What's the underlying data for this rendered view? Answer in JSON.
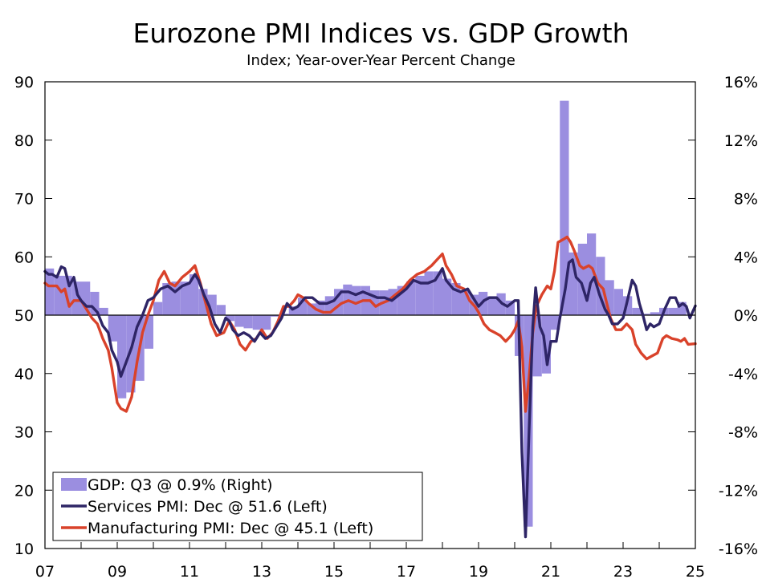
{
  "title": "Eurozone PMI Indices vs. GDP Growth",
  "subtitle": "Index; Year-over-Year Percent Change",
  "colors": {
    "gdp": "#9b8ee0",
    "services": "#2e2566",
    "manufacturing": "#d9422a"
  },
  "chart_data": {
    "type": "bar+line",
    "x_tick_labels": [
      "07",
      "09",
      "11",
      "13",
      "15",
      "17",
      "19",
      "21",
      "23",
      "25"
    ],
    "x_range": [
      2007,
      2025
    ],
    "left_axis": {
      "range": [
        10,
        90
      ],
      "ticks": [
        "10",
        "20",
        "30",
        "40",
        "50",
        "60",
        "70",
        "80",
        "90"
      ]
    },
    "right_axis": {
      "range": [
        -16,
        16
      ],
      "ticks": [
        "-16%",
        "-12%",
        "-8%",
        "-4%",
        "0%",
        "4%",
        "8%",
        "12%",
        "16%"
      ]
    },
    "legend": [
      {
        "label": "GDP: Q3 @ 0.9% (Right)",
        "kind": "bar"
      },
      {
        "label": "Services PMI: Dec @ 51.6 (Left)",
        "kind": "line"
      },
      {
        "label": "Manufacturing PMI: Dec @ 45.1 (Left)",
        "kind": "line"
      }
    ],
    "legend_position": "bottom-left",
    "gdp": [
      [
        2007.0,
        3.2
      ],
      [
        2007.25,
        2.7
      ],
      [
        2007.5,
        2.7
      ],
      [
        2007.75,
        2.3
      ],
      [
        2008.0,
        2.3
      ],
      [
        2008.25,
        1.6
      ],
      [
        2008.5,
        0.5
      ],
      [
        2008.75,
        -1.8
      ],
      [
        2009.0,
        -5.7
      ],
      [
        2009.25,
        -5.3
      ],
      [
        2009.5,
        -4.5
      ],
      [
        2009.75,
        -2.3
      ],
      [
        2010.0,
        0.9
      ],
      [
        2010.25,
        2.2
      ],
      [
        2010.5,
        2.3
      ],
      [
        2010.75,
        2.3
      ],
      [
        2011.0,
        2.8
      ],
      [
        2011.25,
        1.8
      ],
      [
        2011.5,
        1.4
      ],
      [
        2011.75,
        0.7
      ],
      [
        2012.0,
        -0.4
      ],
      [
        2012.25,
        -0.8
      ],
      [
        2012.5,
        -0.9
      ],
      [
        2012.75,
        -1.0
      ],
      [
        2013.0,
        -1.0
      ],
      [
        2013.25,
        -0.1
      ],
      [
        2013.5,
        0.1
      ],
      [
        2013.75,
        0.6
      ],
      [
        2014.0,
        1.2
      ],
      [
        2014.25,
        0.8
      ],
      [
        2014.5,
        1.0
      ],
      [
        2014.75,
        1.3
      ],
      [
        2015.0,
        1.8
      ],
      [
        2015.25,
        2.1
      ],
      [
        2015.5,
        2.0
      ],
      [
        2015.75,
        2.0
      ],
      [
        2016.0,
        1.7
      ],
      [
        2016.25,
        1.7
      ],
      [
        2016.5,
        1.8
      ],
      [
        2016.75,
        2.0
      ],
      [
        2017.0,
        2.3
      ],
      [
        2017.25,
        2.7
      ],
      [
        2017.5,
        3.0
      ],
      [
        2017.75,
        3.0
      ],
      [
        2018.0,
        2.5
      ],
      [
        2018.25,
        2.2
      ],
      [
        2018.5,
        1.7
      ],
      [
        2018.75,
        1.4
      ],
      [
        2019.0,
        1.6
      ],
      [
        2019.25,
        1.3
      ],
      [
        2019.5,
        1.5
      ],
      [
        2019.75,
        1.0
      ],
      [
        2020.0,
        -2.8
      ],
      [
        2020.25,
        -14.5
      ],
      [
        2020.5,
        -4.2
      ],
      [
        2020.75,
        -4.0
      ],
      [
        2021.0,
        -1.0
      ],
      [
        2021.25,
        14.7
      ],
      [
        2021.5,
        4.3
      ],
      [
        2021.75,
        4.9
      ],
      [
        2022.0,
        5.6
      ],
      [
        2022.25,
        4.0
      ],
      [
        2022.5,
        2.4
      ],
      [
        2022.75,
        1.8
      ],
      [
        2023.0,
        1.3
      ],
      [
        2023.25,
        0.5
      ],
      [
        2023.5,
        0.1
      ],
      [
        2023.75,
        0.2
      ],
      [
        2024.0,
        0.5
      ],
      [
        2024.25,
        0.5
      ],
      [
        2024.5,
        0.9
      ]
    ],
    "services_pmi": [
      [
        2007.0,
        57.5
      ],
      [
        2007.1,
        57.0
      ],
      [
        2007.2,
        57.0
      ],
      [
        2007.33,
        56.5
      ],
      [
        2007.45,
        58.3
      ],
      [
        2007.55,
        58.0
      ],
      [
        2007.67,
        55.0
      ],
      [
        2007.8,
        56.5
      ],
      [
        2007.9,
        53.5
      ],
      [
        2008.0,
        52.5
      ],
      [
        2008.15,
        51.5
      ],
      [
        2008.3,
        51.5
      ],
      [
        2008.45,
        50.5
      ],
      [
        2008.6,
        48.2
      ],
      [
        2008.75,
        47.0
      ],
      [
        2008.85,
        44.0
      ],
      [
        2009.0,
        42.0
      ],
      [
        2009.1,
        39.5
      ],
      [
        2009.25,
        42.0
      ],
      [
        2009.4,
        44.5
      ],
      [
        2009.55,
        48.0
      ],
      [
        2009.7,
        50.0
      ],
      [
        2009.85,
        52.5
      ],
      [
        2010.0,
        53.0
      ],
      [
        2010.2,
        54.5
      ],
      [
        2010.4,
        55.0
      ],
      [
        2010.6,
        54.0
      ],
      [
        2010.8,
        55.0
      ],
      [
        2011.0,
        55.5
      ],
      [
        2011.15,
        57.0
      ],
      [
        2011.25,
        56.0
      ],
      [
        2011.4,
        53.5
      ],
      [
        2011.55,
        51.5
      ],
      [
        2011.7,
        48.5
      ],
      [
        2011.85,
        47.0
      ],
      [
        2012.0,
        49.5
      ],
      [
        2012.1,
        49.0
      ],
      [
        2012.2,
        47.5
      ],
      [
        2012.35,
        46.5
      ],
      [
        2012.5,
        47.0
      ],
      [
        2012.65,
        46.5
      ],
      [
        2012.8,
        45.5
      ],
      [
        2012.95,
        47.0
      ],
      [
        2013.1,
        46.0
      ],
      [
        2013.25,
        46.5
      ],
      [
        2013.4,
        48.0
      ],
      [
        2013.55,
        49.5
      ],
      [
        2013.7,
        52.0
      ],
      [
        2013.85,
        51.0
      ],
      [
        2014.0,
        51.5
      ],
      [
        2014.2,
        53.0
      ],
      [
        2014.4,
        53.0
      ],
      [
        2014.6,
        52.0
      ],
      [
        2014.8,
        52.0
      ],
      [
        2015.0,
        52.5
      ],
      [
        2015.2,
        54.0
      ],
      [
        2015.4,
        54.0
      ],
      [
        2015.6,
        53.5
      ],
      [
        2015.8,
        54.0
      ],
      [
        2016.0,
        53.5
      ],
      [
        2016.2,
        53.0
      ],
      [
        2016.4,
        53.0
      ],
      [
        2016.6,
        52.5
      ],
      [
        2016.8,
        53.5
      ],
      [
        2017.0,
        54.5
      ],
      [
        2017.2,
        56.0
      ],
      [
        2017.4,
        55.5
      ],
      [
        2017.6,
        55.5
      ],
      [
        2017.8,
        56.0
      ],
      [
        2018.0,
        58.0
      ],
      [
        2018.1,
        56.0
      ],
      [
        2018.3,
        54.5
      ],
      [
        2018.5,
        54.0
      ],
      [
        2018.7,
        54.5
      ],
      [
        2018.85,
        53.0
      ],
      [
        2019.0,
        51.5
      ],
      [
        2019.15,
        52.5
      ],
      [
        2019.3,
        53.0
      ],
      [
        2019.5,
        53.0
      ],
      [
        2019.65,
        52.0
      ],
      [
        2019.8,
        51.5
      ],
      [
        2020.0,
        52.5
      ],
      [
        2020.1,
        52.5
      ],
      [
        2020.2,
        26.5
      ],
      [
        2020.3,
        12.0
      ],
      [
        2020.4,
        30.5
      ],
      [
        2020.5,
        48.0
      ],
      [
        2020.58,
        54.7
      ],
      [
        2020.7,
        48.0
      ],
      [
        2020.8,
        46.5
      ],
      [
        2020.9,
        41.5
      ],
      [
        2021.0,
        45.5
      ],
      [
        2021.15,
        45.5
      ],
      [
        2021.25,
        49.5
      ],
      [
        2021.4,
        54.5
      ],
      [
        2021.5,
        59.0
      ],
      [
        2021.6,
        59.5
      ],
      [
        2021.7,
        56.5
      ],
      [
        2021.85,
        55.5
      ],
      [
        2022.0,
        52.5
      ],
      [
        2022.1,
        55.5
      ],
      [
        2022.2,
        56.5
      ],
      [
        2022.35,
        53.5
      ],
      [
        2022.5,
        51.0
      ],
      [
        2022.6,
        50.0
      ],
      [
        2022.7,
        48.5
      ],
      [
        2022.85,
        48.5
      ],
      [
        2023.0,
        49.5
      ],
      [
        2023.1,
        52.0
      ],
      [
        2023.25,
        56.0
      ],
      [
        2023.35,
        55.0
      ],
      [
        2023.45,
        52.0
      ],
      [
        2023.55,
        50.0
      ],
      [
        2023.65,
        47.5
      ],
      [
        2023.75,
        48.5
      ],
      [
        2023.85,
        48.0
      ],
      [
        2024.0,
        48.5
      ],
      [
        2024.15,
        51.0
      ],
      [
        2024.3,
        53.0
      ],
      [
        2024.45,
        53.0
      ],
      [
        2024.55,
        51.5
      ],
      [
        2024.65,
        52.0
      ],
      [
        2024.75,
        51.5
      ],
      [
        2024.85,
        49.5
      ],
      [
        2025.0,
        51.6
      ]
    ],
    "manufacturing_pmi": [
      [
        2007.0,
        55.5
      ],
      [
        2007.1,
        55.0
      ],
      [
        2007.2,
        55.0
      ],
      [
        2007.33,
        55.0
      ],
      [
        2007.45,
        54.0
      ],
      [
        2007.55,
        54.5
      ],
      [
        2007.67,
        51.5
      ],
      [
        2007.8,
        52.5
      ],
      [
        2007.9,
        52.5
      ],
      [
        2008.0,
        52.5
      ],
      [
        2008.15,
        51.0
      ],
      [
        2008.3,
        49.5
      ],
      [
        2008.45,
        48.5
      ],
      [
        2008.6,
        46.0
      ],
      [
        2008.75,
        44.0
      ],
      [
        2008.85,
        41.0
      ],
      [
        2009.0,
        35.0
      ],
      [
        2009.1,
        34.0
      ],
      [
        2009.25,
        33.5
      ],
      [
        2009.4,
        36.0
      ],
      [
        2009.55,
        42.0
      ],
      [
        2009.7,
        47.0
      ],
      [
        2009.85,
        50.0
      ],
      [
        2010.0,
        52.5
      ],
      [
        2010.15,
        56.0
      ],
      [
        2010.3,
        57.5
      ],
      [
        2010.45,
        55.5
      ],
      [
        2010.6,
        55.0
      ],
      [
        2010.8,
        56.5
      ],
      [
        2011.0,
        57.5
      ],
      [
        2011.15,
        58.5
      ],
      [
        2011.3,
        55.5
      ],
      [
        2011.45,
        52.0
      ],
      [
        2011.6,
        48.5
      ],
      [
        2011.75,
        46.5
      ],
      [
        2011.95,
        47.0
      ],
      [
        2012.1,
        49.0
      ],
      [
        2012.25,
        47.5
      ],
      [
        2012.4,
        45.0
      ],
      [
        2012.55,
        44.0
      ],
      [
        2012.7,
        45.5
      ],
      [
        2012.85,
        46.0
      ],
      [
        2013.0,
        47.5
      ],
      [
        2013.15,
        46.0
      ],
      [
        2013.3,
        47.0
      ],
      [
        2013.45,
        49.0
      ],
      [
        2013.6,
        51.5
      ],
      [
        2013.75,
        51.5
      ],
      [
        2013.9,
        52.5
      ],
      [
        2014.0,
        53.5
      ],
      [
        2014.15,
        53.0
      ],
      [
        2014.3,
        52.0
      ],
      [
        2014.5,
        51.0
      ],
      [
        2014.7,
        50.5
      ],
      [
        2014.9,
        50.5
      ],
      [
        2015.0,
        51.0
      ],
      [
        2015.2,
        52.0
      ],
      [
        2015.4,
        52.5
      ],
      [
        2015.6,
        52.0
      ],
      [
        2015.8,
        52.5
      ],
      [
        2016.0,
        52.5
      ],
      [
        2016.15,
        51.5
      ],
      [
        2016.3,
        52.0
      ],
      [
        2016.5,
        52.5
      ],
      [
        2016.7,
        53.5
      ],
      [
        2016.9,
        54.5
      ],
      [
        2017.1,
        56.0
      ],
      [
        2017.3,
        57.0
      ],
      [
        2017.5,
        57.5
      ],
      [
        2017.7,
        58.5
      ],
      [
        2017.85,
        59.5
      ],
      [
        2018.0,
        60.5
      ],
      [
        2018.1,
        58.5
      ],
      [
        2018.25,
        57.0
      ],
      [
        2018.4,
        55.0
      ],
      [
        2018.6,
        54.5
      ],
      [
        2018.75,
        52.5
      ],
      [
        2018.9,
        51.5
      ],
      [
        2019.0,
        50.5
      ],
      [
        2019.15,
        48.5
      ],
      [
        2019.3,
        47.5
      ],
      [
        2019.45,
        47.0
      ],
      [
        2019.6,
        46.5
      ],
      [
        2019.75,
        45.5
      ],
      [
        2019.9,
        46.5
      ],
      [
        2020.0,
        47.5
      ],
      [
        2020.1,
        49.0
      ],
      [
        2020.2,
        44.5
      ],
      [
        2020.3,
        33.5
      ],
      [
        2020.4,
        39.5
      ],
      [
        2020.5,
        47.0
      ],
      [
        2020.6,
        51.5
      ],
      [
        2020.75,
        53.5
      ],
      [
        2020.9,
        55.0
      ],
      [
        2021.0,
        54.5
      ],
      [
        2021.1,
        57.5
      ],
      [
        2021.2,
        62.5
      ],
      [
        2021.35,
        63.0
      ],
      [
        2021.45,
        63.4
      ],
      [
        2021.55,
        62.5
      ],
      [
        2021.65,
        61.0
      ],
      [
        2021.8,
        58.5
      ],
      [
        2021.9,
        58.0
      ],
      [
        2022.05,
        58.5
      ],
      [
        2022.15,
        58.0
      ],
      [
        2022.3,
        55.5
      ],
      [
        2022.45,
        54.5
      ],
      [
        2022.55,
        52.0
      ],
      [
        2022.65,
        49.5
      ],
      [
        2022.8,
        47.5
      ],
      [
        2022.95,
        47.5
      ],
      [
        2023.1,
        48.5
      ],
      [
        2023.25,
        47.5
      ],
      [
        2023.35,
        45.0
      ],
      [
        2023.5,
        43.5
      ],
      [
        2023.65,
        42.5
      ],
      [
        2023.8,
        43.0
      ],
      [
        2023.95,
        43.5
      ],
      [
        2024.1,
        46.0
      ],
      [
        2024.2,
        46.5
      ],
      [
        2024.35,
        46.0
      ],
      [
        2024.5,
        45.8
      ],
      [
        2024.6,
        45.5
      ],
      [
        2024.7,
        46.0
      ],
      [
        2024.8,
        45.0
      ],
      [
        2025.0,
        45.1
      ]
    ]
  }
}
